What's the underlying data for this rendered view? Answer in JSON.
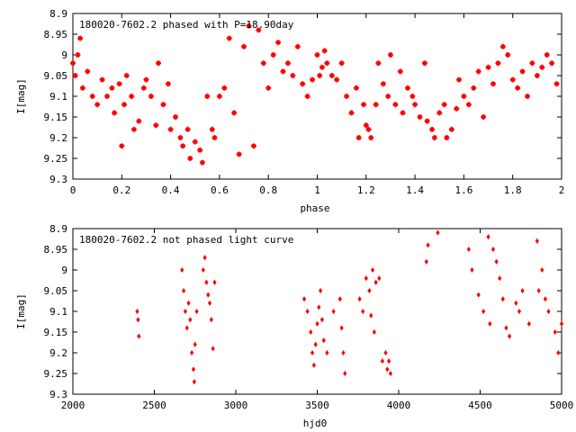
{
  "chart_data": [
    {
      "type": "scatter",
      "title": "180020-7602.2 phased with P=18.90day",
      "xlabel": "phase",
      "ylabel": "I[mag]",
      "xlim": [
        0,
        2
      ],
      "ylim": [
        9.3,
        8.9
      ],
      "y_inverted": true,
      "xticks": [
        "0",
        "0.2",
        "0.4",
        "0.6",
        "0.8",
        "1",
        "1.2",
        "1.4",
        "1.6",
        "1.8",
        "2"
      ],
      "yticks": [
        "8.9",
        "8.95",
        "9",
        "9.05",
        "9.1",
        "9.15",
        "9.2",
        "9.25",
        "9.3"
      ],
      "grid": false,
      "marker": "star",
      "color": "#ff0000",
      "series": [
        {
          "x": [
            0.0,
            0.01,
            0.02,
            0.03,
            0.04,
            0.06,
            0.08,
            0.1,
            0.12,
            0.14,
            0.16,
            0.17,
            0.19,
            0.2,
            0.21,
            0.22,
            0.24,
            0.25,
            0.27,
            0.29,
            0.3,
            0.32,
            0.34,
            0.35,
            0.37,
            0.39,
            0.4,
            0.42,
            0.44,
            0.45,
            0.47,
            0.48,
            0.5,
            0.52,
            0.53,
            0.55,
            0.57,
            0.58,
            0.6,
            0.62,
            0.64,
            0.66,
            0.68,
            0.7,
            0.72,
            0.74,
            0.76,
            0.78,
            0.8,
            0.82,
            0.84,
            0.86,
            0.88,
            0.9,
            0.92,
            0.94,
            0.96,
            0.98,
            1.0,
            1.01,
            1.02,
            1.03,
            1.04,
            1.06,
            1.08,
            1.1,
            1.12,
            1.14,
            1.16,
            1.17,
            1.19,
            1.2,
            1.21,
            1.22,
            1.24,
            1.25,
            1.27,
            1.29,
            1.3,
            1.32,
            1.34,
            1.35,
            1.37,
            1.39,
            1.4,
            1.42,
            1.44,
            1.45,
            1.47,
            1.48,
            1.5,
            1.52,
            1.53,
            1.55,
            1.57,
            1.58,
            1.6,
            1.62,
            1.64,
            1.66,
            1.68,
            1.7,
            1.72,
            1.74,
            1.76,
            1.78,
            1.8,
            1.82,
            1.84,
            1.86,
            1.88,
            1.9,
            1.92,
            1.94,
            1.96,
            1.98
          ],
          "y": [
            9.02,
            9.05,
            9.0,
            8.96,
            9.08,
            9.04,
            9.1,
            9.12,
            9.06,
            9.1,
            9.08,
            9.14,
            9.07,
            9.22,
            9.12,
            9.05,
            9.1,
            9.18,
            9.16,
            9.08,
            9.06,
            9.1,
            9.17,
            9.02,
            9.12,
            9.07,
            9.18,
            9.15,
            9.2,
            9.22,
            9.18,
            9.25,
            9.21,
            9.23,
            9.26,
            9.1,
            9.18,
            9.2,
            9.1,
            9.08,
            8.96,
            9.14,
            9.24,
            8.98,
            8.93,
            9.22,
            8.94,
            9.02,
            9.08,
            9.0,
            8.97,
            9.04,
            9.02,
            9.05,
            8.98,
            9.07,
            9.1,
            9.06,
            9.0,
            9.05,
            9.03,
            8.99,
            9.02,
            9.05,
            9.06,
            9.02,
            9.1,
            9.14,
            9.08,
            9.2,
            9.12,
            9.17,
            9.18,
            9.2,
            9.12,
            9.02,
            9.07,
            9.1,
            9.0,
            9.12,
            9.04,
            9.14,
            9.08,
            9.1,
            9.12,
            9.15,
            9.02,
            9.16,
            9.18,
            9.2,
            9.14,
            9.12,
            9.2,
            9.18,
            9.13,
            9.06,
            9.1,
            9.12,
            9.08,
            9.04,
            9.15,
            9.03,
            9.07,
            9.02,
            8.98,
            9.0,
            9.06,
            9.08,
            9.04,
            9.1,
            9.02,
            9.05,
            9.03,
            9.0,
            9.02,
            9.07
          ],
          "name": ""
        }
      ]
    },
    {
      "type": "scatter",
      "title": "180020-7602.2 not phased light curve",
      "xlabel": "hjd0",
      "ylabel": "I[mag]",
      "xlim": [
        2000,
        5000
      ],
      "ylim": [
        9.3,
        8.9
      ],
      "y_inverted": true,
      "xticks": [
        "2000",
        "2500",
        "3000",
        "3500",
        "4000",
        "4500",
        "5000"
      ],
      "yticks": [
        "8.9",
        "8.95",
        "9",
        "9.05",
        "9.1",
        "9.15",
        "9.2",
        "9.25",
        "9.3"
      ],
      "grid": false,
      "marker": "diamond",
      "color": "#ff0000",
      "series": [
        {
          "x": [
            2395,
            2400,
            2405,
            2670,
            2680,
            2690,
            2700,
            2710,
            2720,
            2730,
            2740,
            2745,
            2750,
            2760,
            2800,
            2810,
            2820,
            2830,
            2840,
            2850,
            2860,
            2870,
            3420,
            3440,
            3460,
            3470,
            3480,
            3490,
            3500,
            3510,
            3520,
            3530,
            3540,
            3560,
            3600,
            3640,
            3650,
            3660,
            3670,
            3760,
            3780,
            3800,
            3820,
            3830,
            3840,
            3850,
            3860,
            3880,
            3900,
            3920,
            3930,
            3940,
            3950,
            4170,
            4180,
            4240,
            4430,
            4450,
            4490,
            4520,
            4550,
            4560,
            4580,
            4600,
            4620,
            4640,
            4660,
            4680,
            4720,
            4740,
            4760,
            4800,
            4850,
            4860,
            4880,
            4900,
            4920,
            4960,
            4980,
            5000
          ],
          "y": [
            9.1,
            9.12,
            9.16,
            9.0,
            9.05,
            9.1,
            9.14,
            9.08,
            9.12,
            9.2,
            9.24,
            9.27,
            9.18,
            9.1,
            9.0,
            8.97,
            9.03,
            9.06,
            9.08,
            9.12,
            9.19,
            9.03,
            9.07,
            9.1,
            9.15,
            9.2,
            9.23,
            9.18,
            9.13,
            9.09,
            9.05,
            9.12,
            9.17,
            9.2,
            9.1,
            9.07,
            9.14,
            9.2,
            9.25,
            9.07,
            9.1,
            9.02,
            9.05,
            9.11,
            9.0,
            9.15,
            9.03,
            9.02,
            9.22,
            9.2,
            9.24,
            9.22,
            9.25,
            8.98,
            8.94,
            8.91,
            8.95,
            9.0,
            9.06,
            9.1,
            8.92,
            9.13,
            8.95,
            8.98,
            9.02,
            9.07,
            9.14,
            9.16,
            9.08,
            9.1,
            9.05,
            9.13,
            8.93,
            9.05,
            9.0,
            9.07,
            9.1,
            9.15,
            9.2,
            9.13
          ],
          "name": ""
        }
      ]
    }
  ]
}
